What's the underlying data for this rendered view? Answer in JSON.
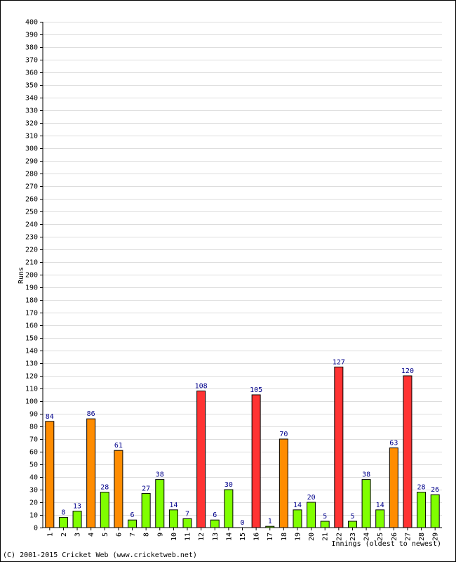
{
  "chart_data": {
    "type": "bar",
    "ylabel": "Runs",
    "xlabel": "Innings (oldest to newest)",
    "ylim": [
      0,
      400
    ],
    "ytick_step": 10,
    "grid": true,
    "categories": [
      "1",
      "2",
      "3",
      "4",
      "5",
      "6",
      "7",
      "8",
      "9",
      "10",
      "11",
      "12",
      "13",
      "14",
      "15",
      "16",
      "17",
      "18",
      "19",
      "20",
      "21",
      "22",
      "23",
      "24",
      "25",
      "26",
      "27",
      "28",
      "29"
    ],
    "values": [
      84,
      8,
      13,
      86,
      28,
      61,
      6,
      27,
      38,
      14,
      7,
      108,
      6,
      30,
      0,
      105,
      1,
      70,
      14,
      20,
      5,
      127,
      5,
      38,
      14,
      63,
      120,
      28,
      26
    ],
    "colors": {
      "under_50": "#80ff00",
      "fifty_plus": "#ff8c00",
      "hundred_plus": "#ff3333",
      "data_label": "#00008b",
      "grid": "#dddddd"
    }
  },
  "footer": {
    "copyright": "(C) 2001-2015 Cricket Web (www.cricketweb.net)"
  }
}
